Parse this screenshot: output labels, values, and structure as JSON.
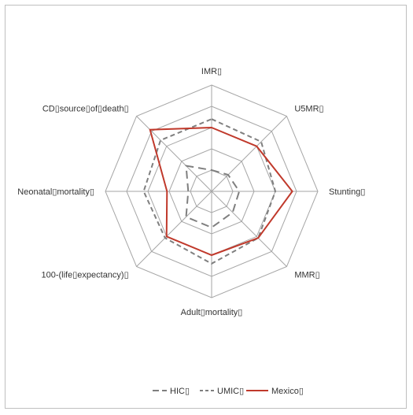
{
  "chart_data": {
    "type": "radar",
    "axes": [
      "IMR▯",
      "U5MR▯",
      "Stunting▯",
      "MMR▯",
      "Adult▯mortality▯",
      "100-(life▯expectancy)▯",
      "Neonatal▯mortality▯",
      "CD▯source▯of▯death▯"
    ],
    "rmax": 5,
    "rings": 5,
    "gridlines": true,
    "legend_position": "bottom",
    "series": [
      {
        "name": "HIC▯",
        "values": [
          1.0,
          1.1,
          1.3,
          1.4,
          1.7,
          1.7,
          1.1,
          1.7
        ],
        "color": "#7f7f7f",
        "style": "dash-long"
      },
      {
        "name": "UMIC▯",
        "values": [
          3.4,
          3.3,
          3.0,
          3.1,
          3.4,
          3.1,
          3.2,
          3.4
        ],
        "color": "#7f7f7f",
        "style": "dash-short"
      },
      {
        "name": "Mexico▯",
        "values": [
          3.0,
          3.0,
          3.8,
          3.1,
          3.0,
          3.0,
          2.1,
          4.1
        ],
        "color": "#c0392b",
        "style": "solid"
      }
    ]
  },
  "legend": {
    "items": [
      "HIC▯",
      "UMIC▯",
      "Mexico▯"
    ]
  }
}
